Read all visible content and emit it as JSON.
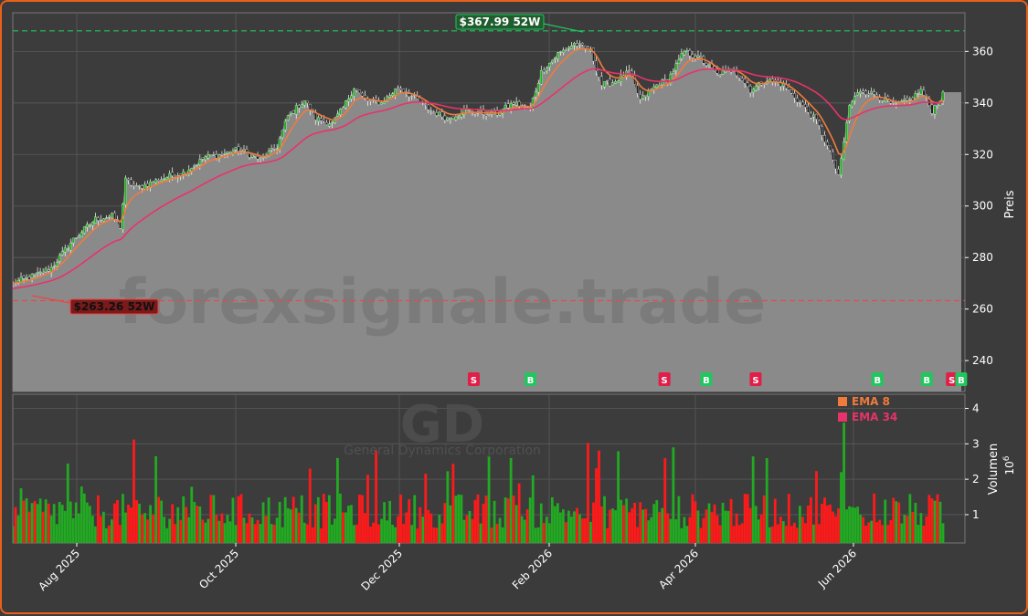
{
  "chart_data": {
    "type": "candlestick",
    "ticker": "GD",
    "company": "General Dynamics Corporation",
    "watermark": "forexsignale.trade",
    "price_axis_label": "Preis",
    "volume_axis_label": "Volumen",
    "volume_multiplier_label": "10",
    "volume_multiplier_exp": "6",
    "high_52w": {
      "value": 367.99,
      "label": "$367.99 52W",
      "color": "#22c55e"
    },
    "low_52w": {
      "value": 263.26,
      "label": "$263.26 52W",
      "color": "#ef4444"
    },
    "price_ylim": [
      228,
      375
    ],
    "price_ticks": [
      240,
      260,
      280,
      300,
      320,
      340,
      360
    ],
    "volume_ylim": [
      0.2,
      4.4
    ],
    "volume_ticks": [
      1,
      2,
      3,
      4
    ],
    "x_ticks": [
      "Aug 2025",
      "Oct 2025",
      "Dec 2025",
      "Feb 2026",
      "Apr 2026",
      "Jun 2026"
    ],
    "legend": [
      {
        "name": "EMA 8",
        "color": "#f07b3c"
      },
      {
        "name": "EMA 34",
        "color": "#e8336a"
      }
    ],
    "colors": {
      "up": "#22aa22",
      "down": "#ff1a1a",
      "area": "#8a8a8a",
      "grid": "#5a5a5a"
    },
    "price_anchors": [
      [
        0,
        270
      ],
      [
        8,
        273
      ],
      [
        14,
        276
      ],
      [
        22,
        287
      ],
      [
        30,
        295
      ],
      [
        36,
        296
      ],
      [
        39,
        292
      ],
      [
        41,
        310
      ],
      [
        45,
        307
      ],
      [
        55,
        311
      ],
      [
        62,
        313
      ],
      [
        70,
        319
      ],
      [
        76,
        320
      ],
      [
        82,
        322
      ],
      [
        90,
        318
      ],
      [
        96,
        323
      ],
      [
        100,
        335
      ],
      [
        106,
        341
      ],
      [
        110,
        334
      ],
      [
        116,
        332
      ],
      [
        120,
        338
      ],
      [
        124,
        346
      ],
      [
        128,
        341
      ],
      [
        134,
        340
      ],
      [
        140,
        346
      ],
      [
        146,
        342
      ],
      [
        152,
        337
      ],
      [
        158,
        334
      ],
      [
        164,
        337
      ],
      [
        170,
        336
      ],
      [
        176,
        336
      ],
      [
        182,
        340
      ],
      [
        188,
        338
      ],
      [
        192,
        352
      ],
      [
        198,
        359
      ],
      [
        204,
        363
      ],
      [
        210,
        360
      ],
      [
        214,
        347
      ],
      [
        218,
        348
      ],
      [
        224,
        352
      ],
      [
        228,
        341
      ],
      [
        234,
        347
      ],
      [
        238,
        349
      ],
      [
        244,
        360
      ],
      [
        250,
        357
      ],
      [
        256,
        351
      ],
      [
        262,
        353
      ],
      [
        268,
        345
      ],
      [
        274,
        349
      ],
      [
        280,
        347
      ],
      [
        286,
        340
      ],
      [
        292,
        333
      ],
      [
        298,
        318
      ],
      [
        300,
        311
      ],
      [
        304,
        339
      ],
      [
        308,
        345
      ],
      [
        314,
        343
      ],
      [
        320,
        339
      ],
      [
        326,
        341
      ],
      [
        330,
        345
      ],
      [
        334,
        337
      ],
      [
        338,
        343
      ]
    ],
    "signals": [
      {
        "type": "S",
        "x_frac": 0.498
      },
      {
        "type": "B",
        "x_frac": 0.559
      },
      {
        "type": "S",
        "x_frac": 0.703
      },
      {
        "type": "B",
        "x_frac": 0.748
      },
      {
        "type": "S",
        "x_frac": 0.801
      },
      {
        "type": "B",
        "x_frac": 0.932
      },
      {
        "type": "B",
        "x_frac": 0.985
      },
      {
        "type": "S",
        "x_frac": 1.012
      },
      {
        "type": "B",
        "x_frac": 1.022
      }
    ]
  }
}
